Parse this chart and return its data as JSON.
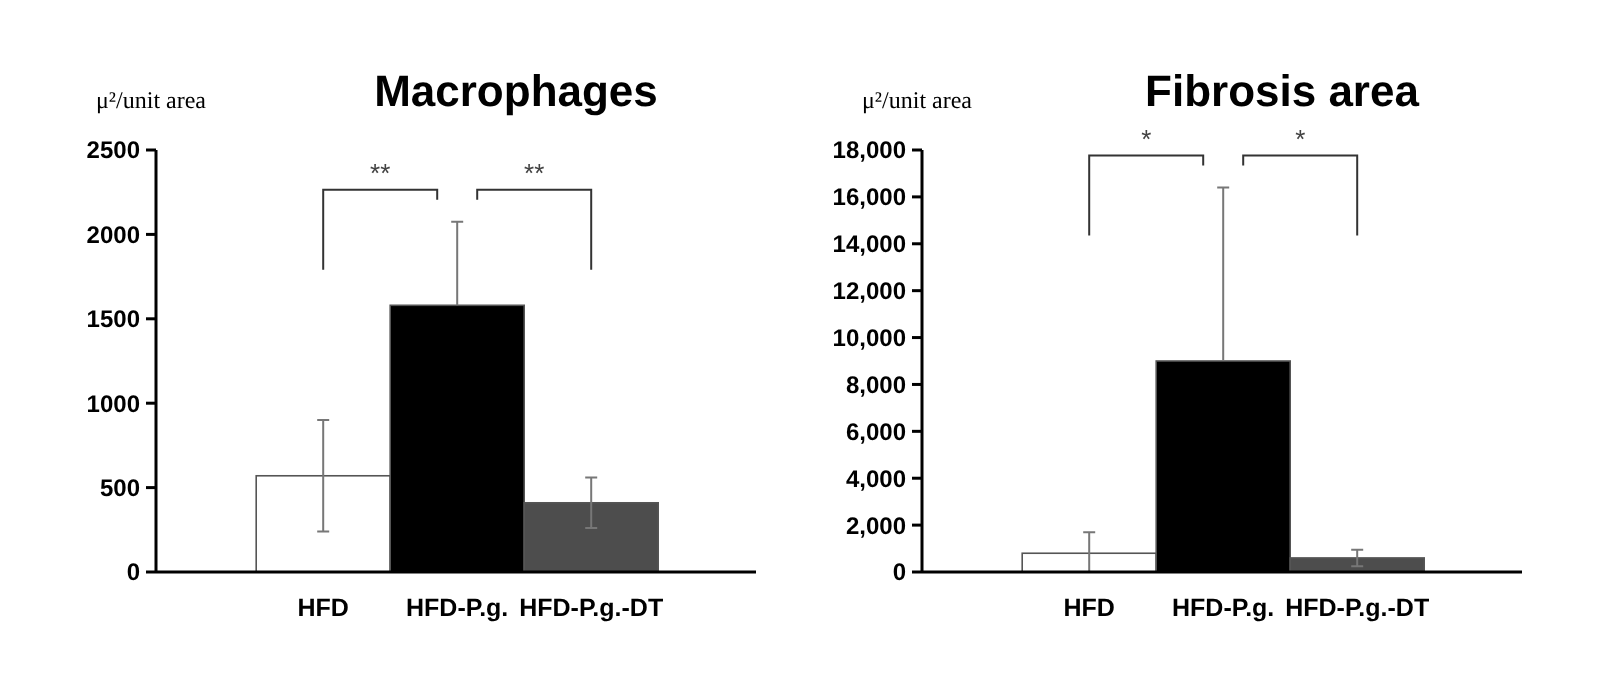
{
  "chart_data": [
    {
      "type": "bar",
      "title": "Macrophages",
      "ylabel": "μ²/unit area",
      "categories": [
        "HFD",
        "HFD-P.g.",
        "HFD-P.g.-DT"
      ],
      "values": [
        570,
        1580,
        410
      ],
      "colors": [
        "#ffffff",
        "#000000",
        "#4d4d4d"
      ],
      "errors": [
        [
          240,
          900
        ],
        [
          1580,
          2075
        ],
        [
          260,
          560
        ]
      ],
      "ylim": [
        0,
        2500
      ],
      "yticks": [
        0,
        500,
        1000,
        1500,
        2000,
        2500
      ],
      "grid": false,
      "annotations": [
        "**",
        "**"
      ]
    },
    {
      "type": "bar",
      "title": "Fibrosis area",
      "ylabel": "μ²/unit area",
      "categories": [
        "HFD",
        "HFD-P.g.",
        "HFD-P.g.-DT"
      ],
      "values": [
        800,
        9000,
        600
      ],
      "colors": [
        "#ffffff",
        "#000000",
        "#4d4d4d"
      ],
      "errors": [
        [
          0,
          1700
        ],
        [
          9000,
          16400
        ],
        [
          250,
          950
        ]
      ],
      "ylim": [
        0,
        18000
      ],
      "yticks": [
        0,
        {
          "value": 2000,
          "label": "2,000"
        },
        {
          "value": 4000,
          "label": "4,000"
        },
        {
          "value": 6000,
          "label": "6,000"
        },
        {
          "value": 8000,
          "label": "8,000"
        },
        {
          "value": 10000,
          "label": "10,000"
        },
        {
          "value": 12000,
          "label": "12,000"
        },
        {
          "value": 14000,
          "label": "14,000"
        },
        {
          "value": 16000,
          "label": "16,000"
        },
        {
          "value": 18000,
          "label": "18,000"
        }
      ],
      "grid": false,
      "annotations": [
        "*",
        "*"
      ]
    }
  ]
}
